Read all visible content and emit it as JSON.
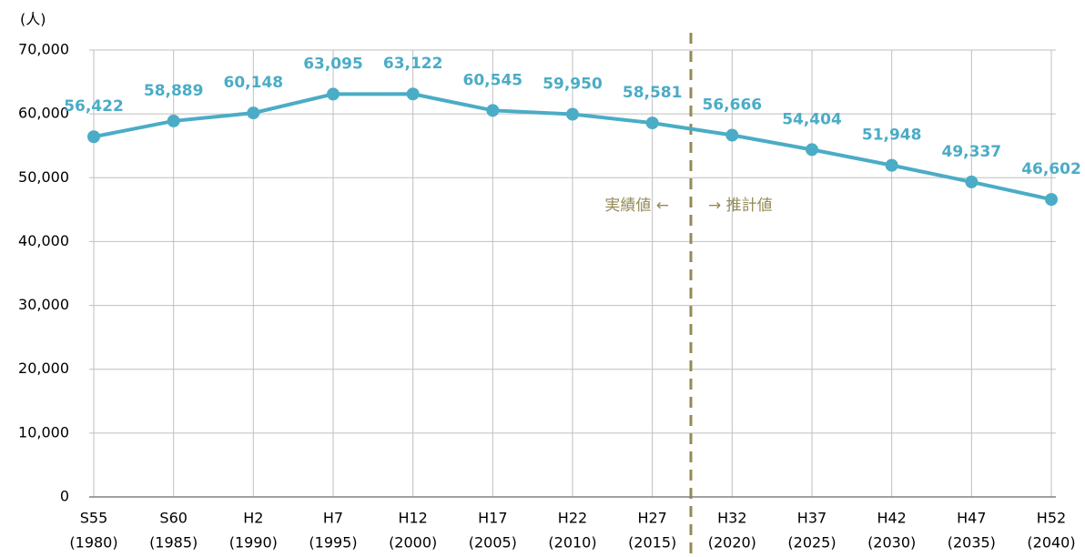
{
  "chart_data": {
    "type": "line",
    "y_label": "(人)",
    "categories": [
      "S55",
      "S60",
      "H2",
      "H7",
      "H12",
      "H17",
      "H22",
      "H27",
      "H32",
      "H37",
      "H42",
      "H47",
      "H52"
    ],
    "category_years": [
      "(1980)",
      "(1985)",
      "(1990)",
      "(1995)",
      "(2000)",
      "(2005)",
      "(2010)",
      "(2015)",
      "(2020)",
      "(2025)",
      "(2030)",
      "(2035)",
      "(2040)"
    ],
    "series": [
      {
        "color": "#4bacc6",
        "values": [
          56422,
          58889,
          60148,
          63095,
          63122,
          60545,
          59950,
          58581,
          56666,
          54404,
          51948,
          49337,
          46602
        ],
        "value_labels": [
          "56,422",
          "58,889",
          "60,148",
          "63,095",
          "63,122",
          "60,545",
          "59,950",
          "58,581",
          "56,666",
          "54,404",
          "51,948",
          "49,337",
          "46,602"
        ]
      }
    ],
    "ylim": [
      0,
      70000
    ],
    "yticks": [
      0,
      {
        "value": 10000,
        "label": "10,000"
      },
      {
        "value": 20000,
        "label": "20,000"
      },
      {
        "value": 30000,
        "label": "30,000"
      },
      {
        "value": 40000,
        "label": "40,000"
      },
      {
        "value": 50000,
        "label": "50,000"
      },
      {
        "value": 60000,
        "label": "60,000"
      },
      {
        "value": 70000,
        "label": "70,000"
      }
    ],
    "grid": true,
    "annotations": [
      "実績値 ←",
      "→ 推計値"
    ]
  }
}
